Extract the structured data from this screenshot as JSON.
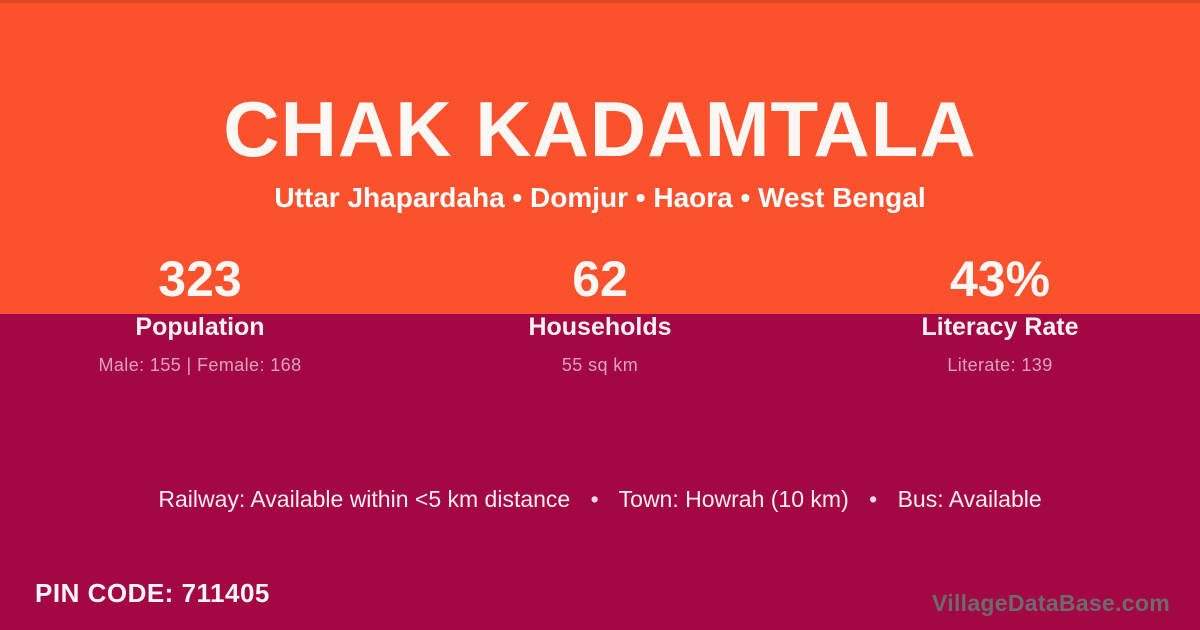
{
  "colors": {
    "orange": "#fb512c",
    "crimson": "#a30845",
    "watermark_text": "#6e6a6c"
  },
  "header": {
    "title": "CHAK KADAMTALA",
    "subtitle": "Uttar Jhapardaha • Domjur • Haora • West Bengal"
  },
  "stats": [
    {
      "value": "323",
      "label": "Population",
      "detail": "Male: 155 | Female: 168"
    },
    {
      "value": "62",
      "label": "Households",
      "detail": "55 sq km"
    },
    {
      "value": "43%",
      "label": "Literacy Rate",
      "detail": "Literate: 139"
    }
  ],
  "transport": {
    "railway": "Railway: Available within <5 km distance",
    "separator": "•",
    "town": "Town: Howrah (10 km)",
    "bus": "Bus: Available"
  },
  "footer": {
    "pin_code": "PIN CODE: 711405",
    "watermark": "VillageDataBase.com"
  }
}
